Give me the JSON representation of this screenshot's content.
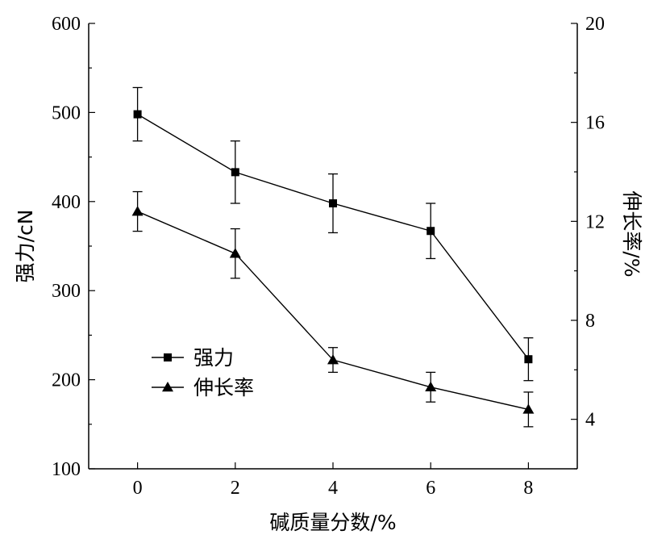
{
  "chart_data": {
    "type": "line",
    "xlabel": "碱质量分数/%",
    "ylabel_left": "强力/cN",
    "ylabel_right": "伸长率/%",
    "x_ticks": [
      "0",
      "2",
      "4",
      "6",
      "8"
    ],
    "y_left_ticks": [
      "100",
      "200",
      "300",
      "400",
      "500",
      "600"
    ],
    "y_right_ticks": [
      "4",
      "8",
      "12",
      "16",
      "20"
    ],
    "xlim": [
      -1,
      9
    ],
    "ylim_left": [
      100,
      600
    ],
    "ylim_right": [
      2,
      20
    ],
    "grid": false,
    "legend_position": "lower-left",
    "series": [
      {
        "name": "强力",
        "axis": "left",
        "marker": "square",
        "x": [
          0,
          2,
          4,
          6,
          8
        ],
        "y": [
          498,
          433,
          398,
          367,
          223
        ],
        "err": [
          30,
          35,
          33,
          31,
          24
        ]
      },
      {
        "name": "伸长率",
        "axis": "right",
        "marker": "triangle",
        "x": [
          0,
          2,
          4,
          6,
          8
        ],
        "y": [
          12.4,
          10.7,
          6.4,
          5.3,
          4.4
        ],
        "err": [
          0.8,
          1.0,
          0.5,
          0.6,
          0.7
        ]
      }
    ]
  }
}
